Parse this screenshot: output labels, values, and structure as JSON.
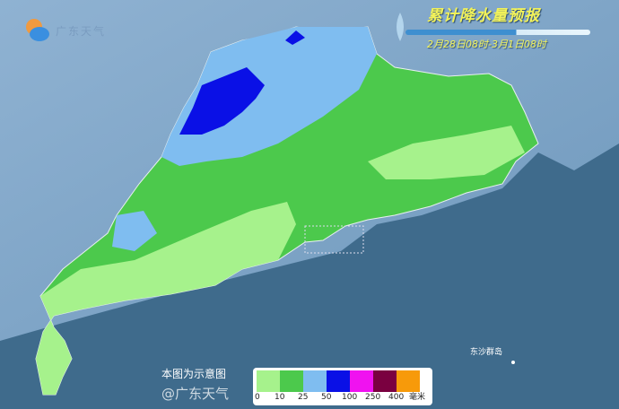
{
  "title": "累计降水量预报",
  "period": "2月28日08时-3月1日08时",
  "logo_text": "广东天气",
  "note": "本图为示意图",
  "watermark": "@广东天气",
  "island_label": "东沙群岛",
  "legend": {
    "unit": "毫米",
    "labels": [
      "0",
      "10",
      "25",
      "50",
      "100",
      "250",
      "400"
    ],
    "colors": [
      "#a6f28c",
      "#4cc94c",
      "#7fbdf0",
      "#0a10e6",
      "#f012f0",
      "#7a0040",
      "#f79a0a"
    ]
  },
  "colors": {
    "sea": "#3f6b8c",
    "land_outside": "#7ea4c6",
    "title": "#f2f25a"
  }
}
